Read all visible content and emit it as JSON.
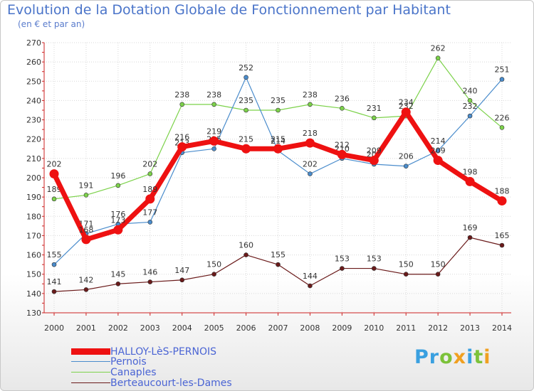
{
  "title": "Evolution de la Dotation Globale de Fonctionnement par Habitant",
  "subtitle": "(en € et par an)",
  "logo": {
    "p": "Pr",
    "o": "o",
    "x": "x",
    "i": "i",
    "t": "t",
    "i2": "i"
  },
  "chart_data": {
    "type": "line",
    "title": "Evolution de la Dotation Globale de Fonctionnement par Habitant",
    "ylabel": "(en € et par an)",
    "x": [
      "2000",
      "2001",
      "2002",
      "2003",
      "2004",
      "2005",
      "2006",
      "2007",
      "2008",
      "2009",
      "2010",
      "2011",
      "2012",
      "2013",
      "2014"
    ],
    "ylim": [
      130,
      270
    ],
    "yticks": [
      130,
      140,
      150,
      160,
      170,
      180,
      190,
      200,
      210,
      220,
      230,
      240,
      250,
      260,
      270
    ],
    "series": [
      {
        "name": "HALLOY-LèS-PERNOIS",
        "color": "#ee1111",
        "values": [
          202,
          168,
          173,
          189,
          216,
          219,
          215,
          215,
          218,
          212,
          209,
          234,
          209,
          198,
          188
        ]
      },
      {
        "name": "Pernois",
        "color": "#4a8ccc",
        "values": [
          155,
          171,
          176,
          177,
          213,
          215,
          252,
          214,
          202,
          210,
          207,
          206,
          214,
          232,
          251
        ]
      },
      {
        "name": "Canaples",
        "color": "#7cd24a",
        "values": [
          189,
          191,
          196,
          202,
          238,
          238,
          235,
          235,
          238,
          236,
          231,
          232,
          262,
          240,
          226
        ]
      },
      {
        "name": "Berteaucourt-les-Dames",
        "color": "#6a1a1a",
        "values": [
          141,
          142,
          145,
          146,
          147,
          150,
          160,
          155,
          144,
          153,
          153,
          150,
          150,
          169,
          165
        ]
      }
    ]
  }
}
